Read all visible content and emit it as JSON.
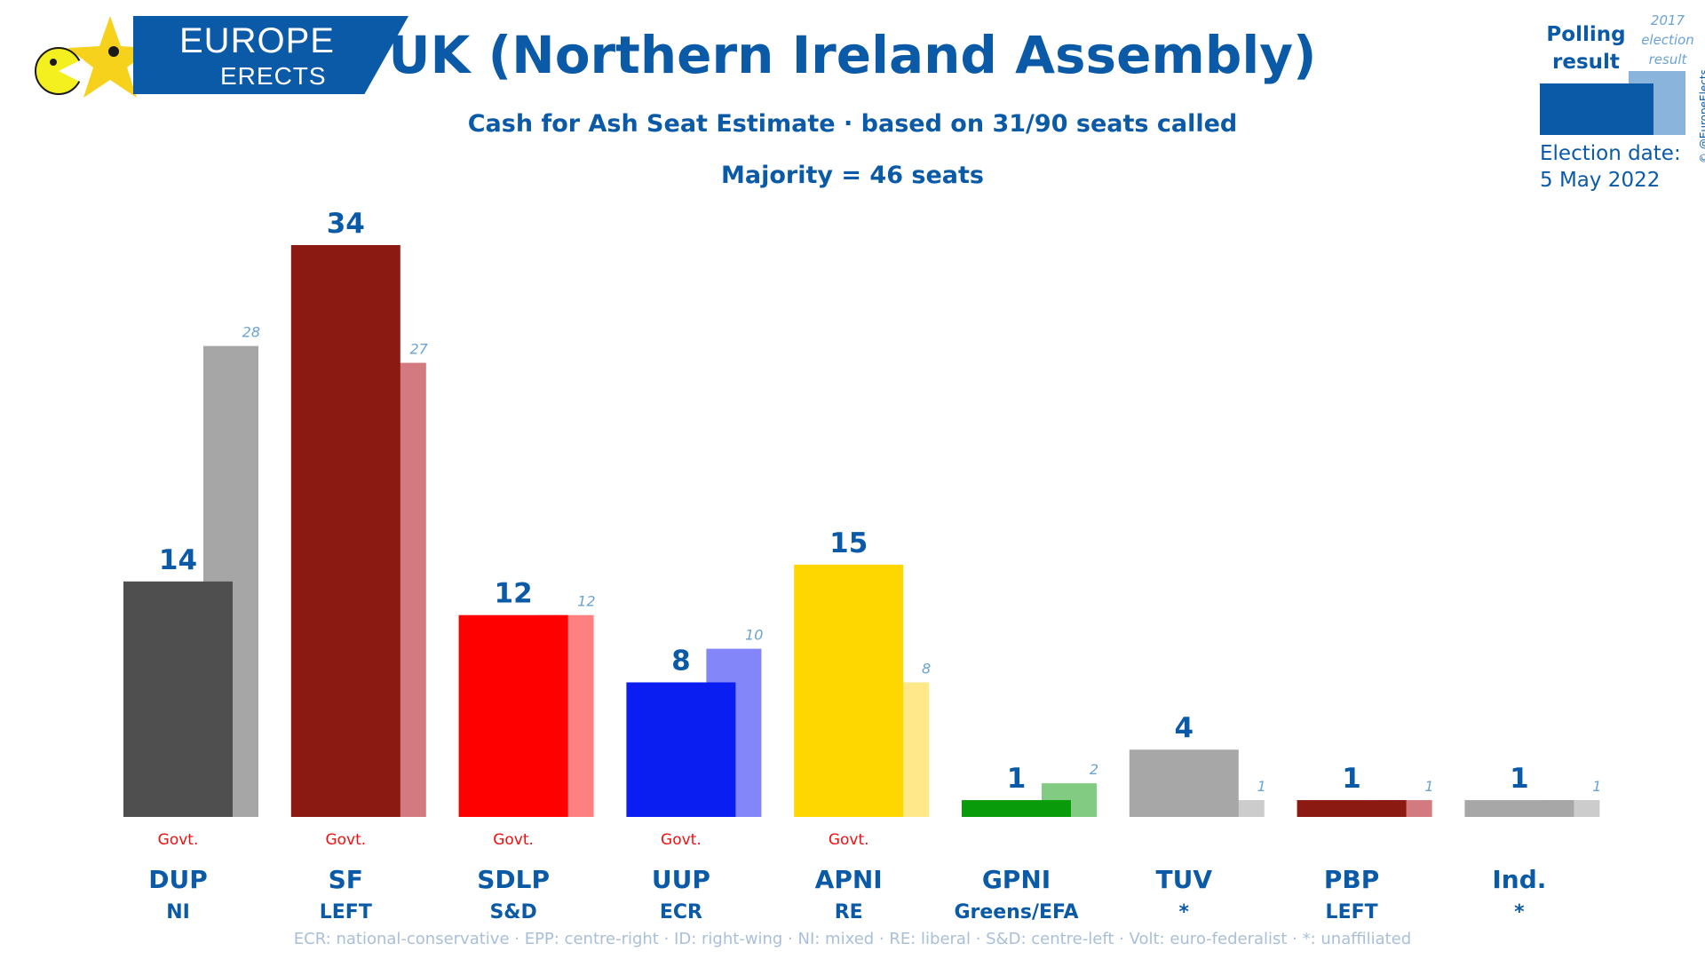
{
  "logo": {
    "line1": "EUROPE",
    "line2": "ERECTS"
  },
  "header": {
    "title": "UK (Northern Ireland Assembly)",
    "subtitle": "Cash for Ash Seat Estimate · based on 31/90 seats called",
    "majority": "Majority = 46 seats"
  },
  "legend": {
    "polling_line1": "Polling",
    "polling_line2": "result",
    "prev_line1": "2017",
    "prev_line2": "election",
    "prev_line3": "result",
    "date_label": "Election date:",
    "date_value": "5 May 2022",
    "credit": "© @EuropeElects"
  },
  "footer": "ECR: national-conservative · EPP: centre-right · ID: right-wing · NI: mixed · RE: liberal · S&D: centre-left · Volt: euro-federalist · *: unaffiliated",
  "chart_data": {
    "type": "bar",
    "title": "UK (Northern Ireland Assembly)",
    "ylim": [
      0,
      34
    ],
    "categories": [
      "DUP",
      "SF",
      "SDLP",
      "UUP",
      "APNI",
      "GPNI",
      "TUV",
      "PBP",
      "Ind."
    ],
    "groups": [
      "NI",
      "LEFT",
      "S&D",
      "ECR",
      "RE",
      "Greens/EFA",
      "*",
      "LEFT",
      "*"
    ],
    "govt_label": "Govt.",
    "government": [
      true,
      true,
      true,
      true,
      true,
      false,
      false,
      false,
      false
    ],
    "series": [
      {
        "name": "Polling result",
        "values": [
          14,
          34,
          12,
          8,
          15,
          1,
          4,
          1,
          1
        ]
      },
      {
        "name": "2017 election result",
        "values": [
          28,
          27,
          12,
          10,
          8,
          2,
          1,
          1,
          1
        ]
      }
    ],
    "colors": [
      "#4f4f4f",
      "#8b1a13",
      "#ff0000",
      "#0a1ef2",
      "#fed700",
      "#0a9b0a",
      "#a7a7a7",
      "#8b1a13",
      "#a7a7a7"
    ],
    "prev_colors": [
      "#a6a6a6",
      "#d27a7f",
      "#ff8080",
      "#8286f8",
      "#ffe88a",
      "#81cb82",
      "#cccccc",
      "#d27a7f",
      "#cccccc"
    ]
  }
}
